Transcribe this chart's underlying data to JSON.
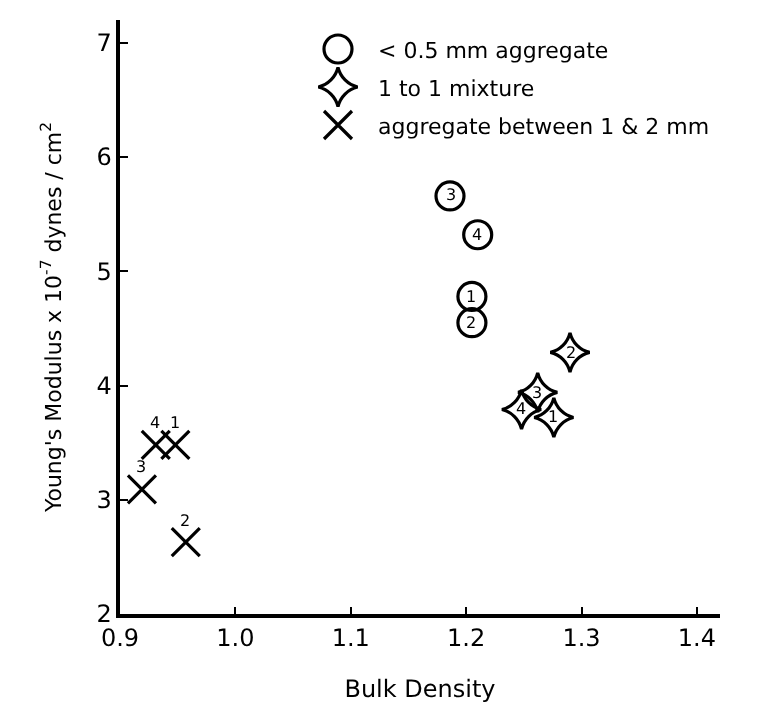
{
  "chart_data": {
    "type": "scatter",
    "xlabel": "Bulk Density",
    "ylabel": "Young's Modulus x 10$^{-7}$ dynes / cm$^{2}$",
    "xlim": [
      0.9,
      1.42
    ],
    "ylim": [
      2,
      7.2
    ],
    "xticks": [
      {
        "value": 0.9,
        "label": "0.9"
      },
      {
        "value": 1.0,
        "label": "1.0"
      },
      {
        "value": 1.1,
        "label": "1.1"
      },
      {
        "value": 1.2,
        "label": "1.2"
      },
      {
        "value": 1.3,
        "label": "1.3"
      },
      {
        "value": 1.4,
        "label": "1.4"
      }
    ],
    "yticks": [
      2,
      3,
      4,
      5,
      6,
      7
    ],
    "legend": "top right",
    "series": [
      {
        "name": "< 0.5 mm aggregate",
        "color": "#000000",
        "marker": "circle",
        "x": [
          1.205,
          1.205,
          1.186,
          1.21
        ],
        "values": [
          4.78,
          4.55,
          5.66,
          5.32
        ]
      },
      {
        "name": "1 to 1 mixture",
        "color": "#000000",
        "marker": "star",
        "x": [
          1.276,
          1.29,
          1.262,
          1.248
        ],
        "values": [
          3.72,
          4.29,
          3.94,
          3.79
        ]
      },
      {
        "name": "aggregate between 1 & 2 mm",
        "color": "#000000",
        "marker": "cross",
        "x": [
          0.948,
          0.957,
          0.919,
          0.931
        ],
        "values": [
          3.48,
          2.63,
          3.09,
          3.48
        ]
      }
    ],
    "annotations": [
      {
        "text": "1",
        "x": 1.205,
        "y": 4.78
      },
      {
        "text": "2",
        "x": 1.205,
        "y": 4.55
      },
      {
        "text": "3",
        "x": 1.186,
        "y": 5.66
      },
      {
        "text": "4",
        "x": 1.21,
        "y": 5.32
      },
      {
        "text": "1",
        "x": 1.276,
        "y": 3.72
      },
      {
        "text": "2",
        "x": 1.29,
        "y": 4.29
      },
      {
        "text": "3",
        "x": 1.262,
        "y": 3.94
      },
      {
        "text": "4",
        "x": 1.248,
        "y": 3.79
      },
      {
        "text": "1",
        "x": 0.948,
        "y": 3.48
      },
      {
        "text": "2",
        "x": 0.957,
        "y": 2.63
      },
      {
        "text": "3",
        "x": 0.919,
        "y": 3.09
      },
      {
        "text": "4",
        "x": 0.931,
        "y": 3.48
      }
    ]
  }
}
